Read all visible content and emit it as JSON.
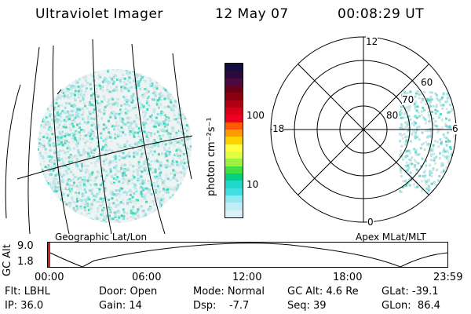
{
  "header": {
    "instrument": "Ultraviolet Imager",
    "date": "12 May 07",
    "time": "00:08:29 UT"
  },
  "colorbar": {
    "unit_label": "photon cm⁻²s⁻¹",
    "ticks": [
      "100",
      "10"
    ],
    "colors": [
      "#101040",
      "#2a0a3a",
      "#4a0a40",
      "#6a0018",
      "#8a0010",
      "#b00014",
      "#d80018",
      "#f00020",
      "#ff5a00",
      "#ff9a00",
      "#ffd000",
      "#ffff40",
      "#e0ff40",
      "#a0f040",
      "#40e040",
      "#00d080",
      "#20d8c8",
      "#40e0e0",
      "#90e8f0",
      "#c0eef4",
      "#dcf2f8"
    ]
  },
  "left_panel": {
    "label": "Geographic Lat/Lon"
  },
  "right_panel": {
    "label": "Apex MLat/MLT",
    "mlt_labels": {
      "top": "12",
      "left": "18",
      "right": "6",
      "bottom": "0"
    },
    "lat_labels": [
      "60",
      "70",
      "80"
    ]
  },
  "timeline": {
    "ylabel": "GC Alt",
    "y_ticks": [
      "9.0",
      "1.8"
    ],
    "x_ticks": [
      "00:00",
      "06:00",
      "12:00",
      "18:00",
      "23:59"
    ],
    "accent_color": "#cc2222"
  },
  "status": {
    "col1": [
      "Flt: LBHL",
      "IP: 36.0"
    ],
    "col2": [
      "Door: Open",
      "Gain: 14"
    ],
    "col3": [
      "Mode: Normal",
      "Dsp:    -7.7"
    ],
    "col4": [
      "GC Alt: 4.6 Re",
      "Seq: 39"
    ],
    "col5": [
      "GLat: -39.1",
      "GLon:  86.4"
    ]
  }
}
